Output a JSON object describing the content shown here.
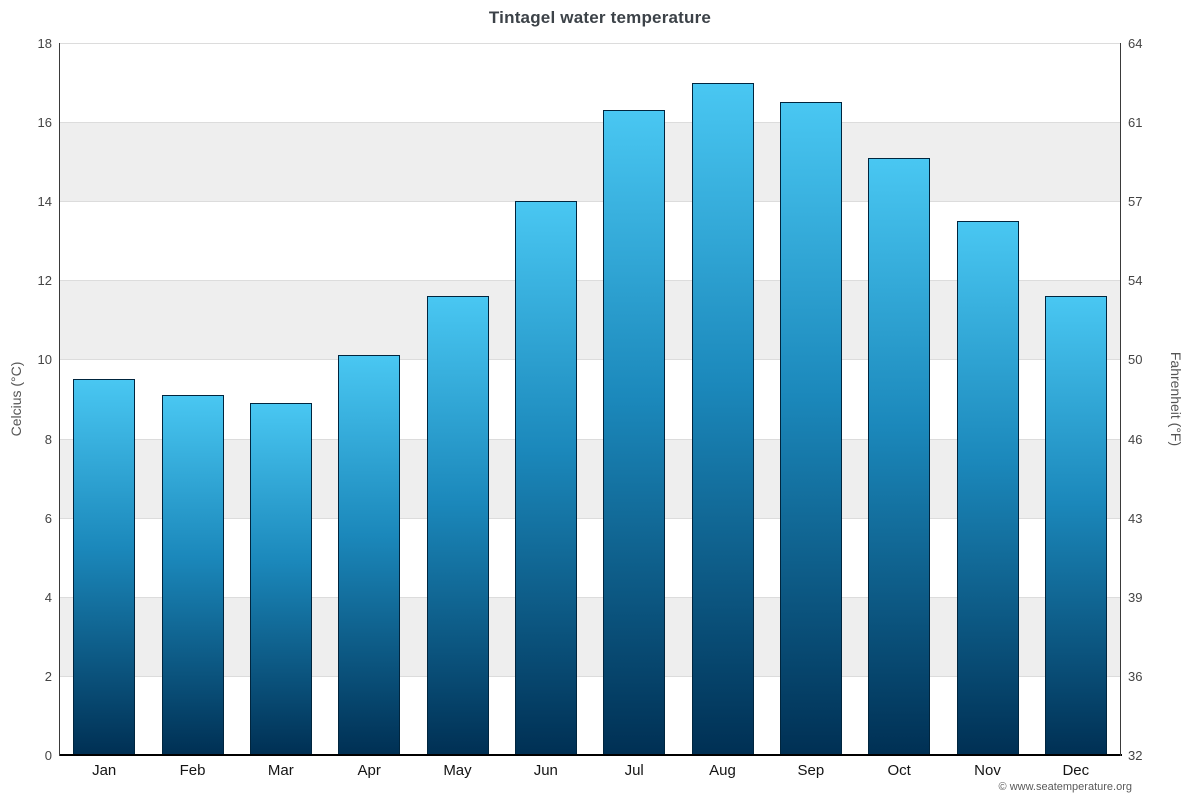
{
  "title": "Tintagel water temperature",
  "axes": {
    "left_title": "Celcius (°C)",
    "right_title": "Fahrenheit (°F)",
    "left_ticks": [
      0,
      2,
      4,
      6,
      8,
      10,
      12,
      14,
      16,
      18
    ],
    "right_ticks": [
      32,
      36,
      39,
      43,
      46,
      50,
      54,
      57,
      61,
      64
    ]
  },
  "chart_data": {
    "type": "bar",
    "title": "Tintagel water temperature",
    "categories": [
      "Jan",
      "Feb",
      "Mar",
      "Apr",
      "May",
      "Jun",
      "Jul",
      "Aug",
      "Sep",
      "Oct",
      "Nov",
      "Dec"
    ],
    "values": [
      9.5,
      9.1,
      8.9,
      10.1,
      11.6,
      14.0,
      16.3,
      17.0,
      16.5,
      15.1,
      13.5,
      11.6
    ],
    "xlabel": "",
    "ylabel": "Celcius (°C)",
    "ylabel_right": "Fahrenheit (°F)",
    "ylim": [
      0,
      18
    ],
    "grid": true,
    "legend": false,
    "band_color": "#eeeeee",
    "bar_color_top": "#49c7f2",
    "bar_color_bottom": "#003054"
  },
  "footer": {
    "credit": "© www.seatemperature.org"
  }
}
